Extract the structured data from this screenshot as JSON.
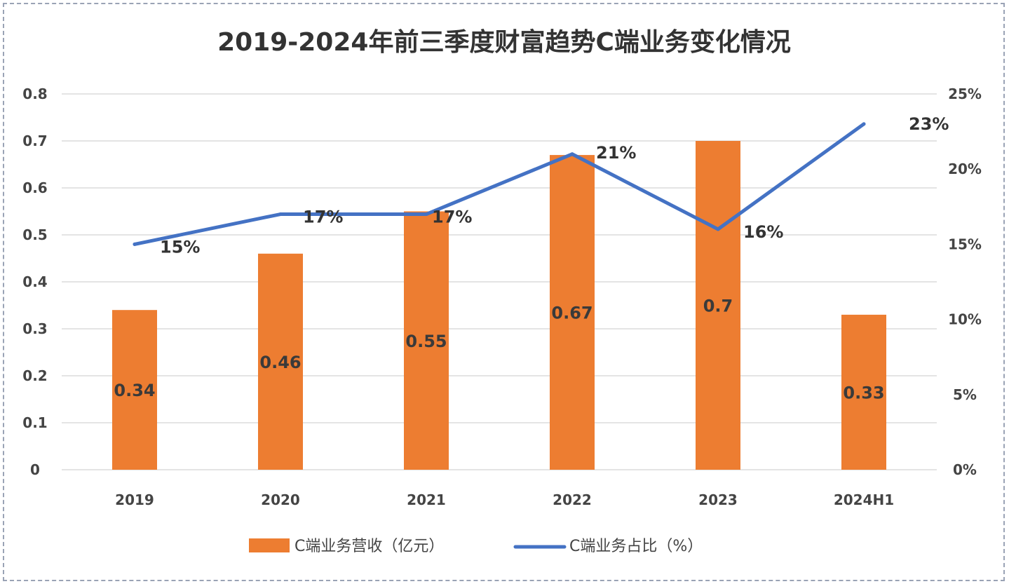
{
  "chart_data": {
    "type": "bar+line",
    "title": "2019-2024年前三季度财富趋势C端业务变化情况",
    "categories": [
      "2019",
      "2020",
      "2021",
      "2022",
      "2023",
      "2024H1"
    ],
    "series": [
      {
        "name": "C端业务营收（亿元）",
        "type": "bar",
        "axis": "left",
        "color": "#ed7d31",
        "values": [
          0.34,
          0.46,
          0.55,
          0.67,
          0.7,
          0.33
        ],
        "labels": [
          "0.34",
          "0.46",
          "0.55",
          "0.67",
          "0.7",
          "0.33"
        ]
      },
      {
        "name": "C端业务占比（%）",
        "type": "line",
        "axis": "right",
        "color": "#4472c4",
        "values": [
          15,
          17,
          17,
          21,
          16,
          23
        ],
        "labels": [
          "15%",
          "17%",
          "17%",
          "21%",
          "16%",
          "23%"
        ]
      }
    ],
    "y_left": {
      "ylim": [
        0,
        0.8
      ],
      "ticks": [
        "0",
        "0.1",
        "0.2",
        "0.3",
        "0.4",
        "0.5",
        "0.6",
        "0.7",
        "0.8"
      ]
    },
    "y_right": {
      "ylim": [
        0,
        25
      ],
      "ticks": [
        "0%",
        "5%",
        "10%",
        "15%",
        "20%",
        "25%"
      ]
    },
    "grid": true,
    "legend": "bottom"
  }
}
